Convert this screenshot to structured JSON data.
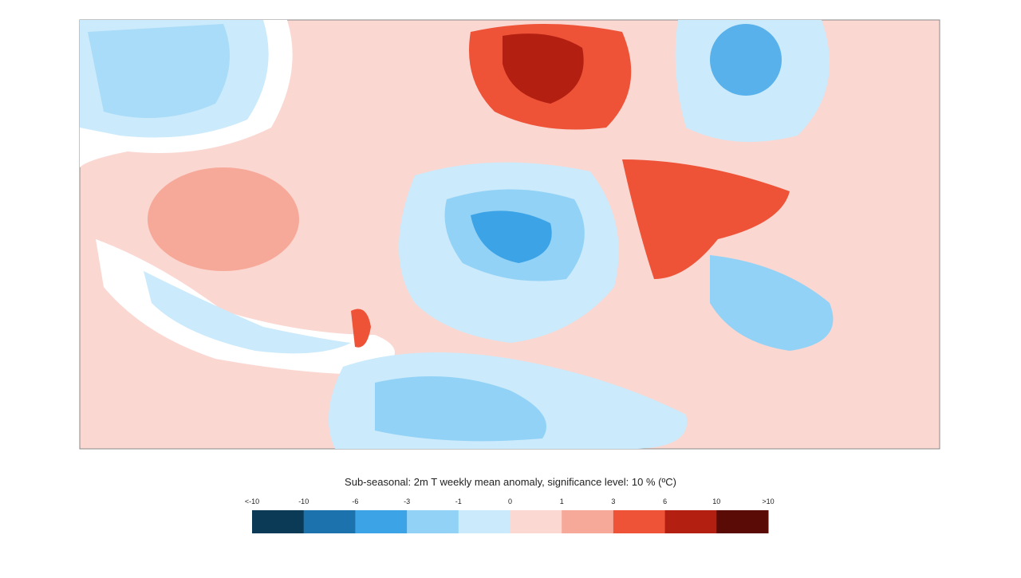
{
  "colorbar": {
    "title": "Sub-seasonal: 2m T weekly mean anomaly, significance level: 10 % (ºC)",
    "labels": [
      "<-10",
      "-10",
      "-6",
      "-3",
      "-1",
      "0",
      "1",
      "3",
      "6",
      "10",
      ">10"
    ],
    "colors": [
      "#0b3a57",
      "#1b72ad",
      "#3ba3e6",
      "#92d2f6",
      "#cbeafb",
      "#fcd8d2",
      "#f7a999",
      "#ee5237",
      "#b31f10",
      "#5a0b05"
    ]
  }
}
